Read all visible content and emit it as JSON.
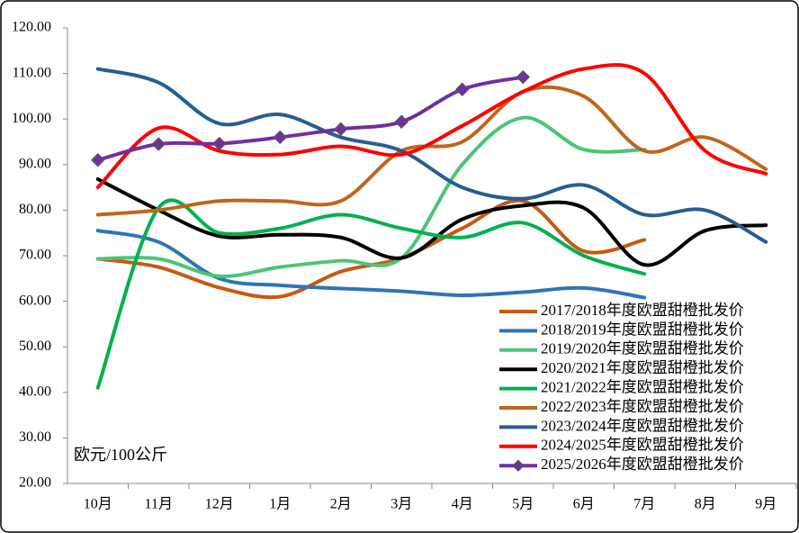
{
  "chart_data": {
    "type": "line",
    "y_axis_label": "欧元/100公斤",
    "categories": [
      "10月",
      "11月",
      "12月",
      "1月",
      "2月",
      "3月",
      "4月",
      "5月",
      "6月",
      "7月",
      "8月",
      "9月"
    ],
    "ylim": [
      20,
      120
    ],
    "yticks": [
      {
        "value": 20,
        "label": "20.00"
      },
      {
        "value": 30,
        "label": "30.00"
      },
      {
        "value": 40,
        "label": "40.00"
      },
      {
        "value": 50,
        "label": "50.00"
      },
      {
        "value": 60,
        "label": "60.00"
      },
      {
        "value": 70,
        "label": "70.00"
      },
      {
        "value": 80,
        "label": "80.00"
      },
      {
        "value": 90,
        "label": "90.00"
      },
      {
        "value": 100,
        "label": "100.00"
      },
      {
        "value": 110,
        "label": "110.00"
      },
      {
        "value": 120,
        "label": "120.00"
      }
    ],
    "grid": false,
    "smooth": true,
    "legend_position": "lower right",
    "series": [
      {
        "name": "2017/2018年度欧盟甜橙批发价",
        "color": "#c55a11",
        "values": [
          69.3,
          67.5,
          63,
          61,
          66.5,
          69.5,
          76,
          82,
          71,
          73.5,
          null,
          null
        ]
      },
      {
        "name": "2018/2019年度欧盟甜橙批发价",
        "color": "#2e75b6",
        "values": [
          75.5,
          73,
          65,
          63.5,
          62.8,
          62.2,
          61.3,
          62,
          62.9,
          60.8,
          null,
          null
        ]
      },
      {
        "name": "2019/2020年度欧盟甜橙批发价",
        "color": "#4cc47a",
        "values": [
          69.3,
          69.3,
          65.5,
          67.5,
          68.9,
          69.5,
          90,
          100.3,
          93.3,
          93.3,
          null,
          null
        ]
      },
      {
        "name": "2020/2021年度欧盟甜橙批发价",
        "color": "#000000",
        "values": [
          86.8,
          80,
          74.3,
          74.6,
          74,
          69.5,
          78,
          81,
          80.5,
          68,
          75.5,
          76.7
        ]
      },
      {
        "name": "2021/2022年度欧盟甜橙批发价",
        "color": "#00b050",
        "values": [
          41,
          80.5,
          75,
          76,
          79,
          76,
          74,
          77.2,
          70,
          66,
          null,
          null
        ]
      },
      {
        "name": "2022/2023年度欧盟甜橙批发价",
        "color": "#c0661c",
        "values": [
          79,
          80,
          82,
          82,
          82,
          93,
          95,
          106,
          105,
          93,
          96,
          89
        ]
      },
      {
        "name": "2023/2024年度欧盟甜橙批发价",
        "color": "#255e91",
        "values": [
          111,
          108,
          99,
          101,
          96,
          93,
          85,
          82.5,
          85.5,
          79,
          80,
          73
        ]
      },
      {
        "name": "2024/2025年度欧盟甜橙批发价",
        "color": "#ff0000",
        "values": [
          85,
          98,
          93,
          92.2,
          94,
          92.2,
          98.5,
          106,
          111,
          110,
          93,
          88
        ]
      },
      {
        "name": "2025/2026年度欧盟甜橙批发价",
        "color": "#7030a0",
        "marker": "diamond",
        "values": [
          91,
          94.5,
          94.6,
          96,
          97.8,
          99.4,
          106.5,
          109.2,
          null,
          null,
          null,
          null
        ]
      }
    ]
  }
}
